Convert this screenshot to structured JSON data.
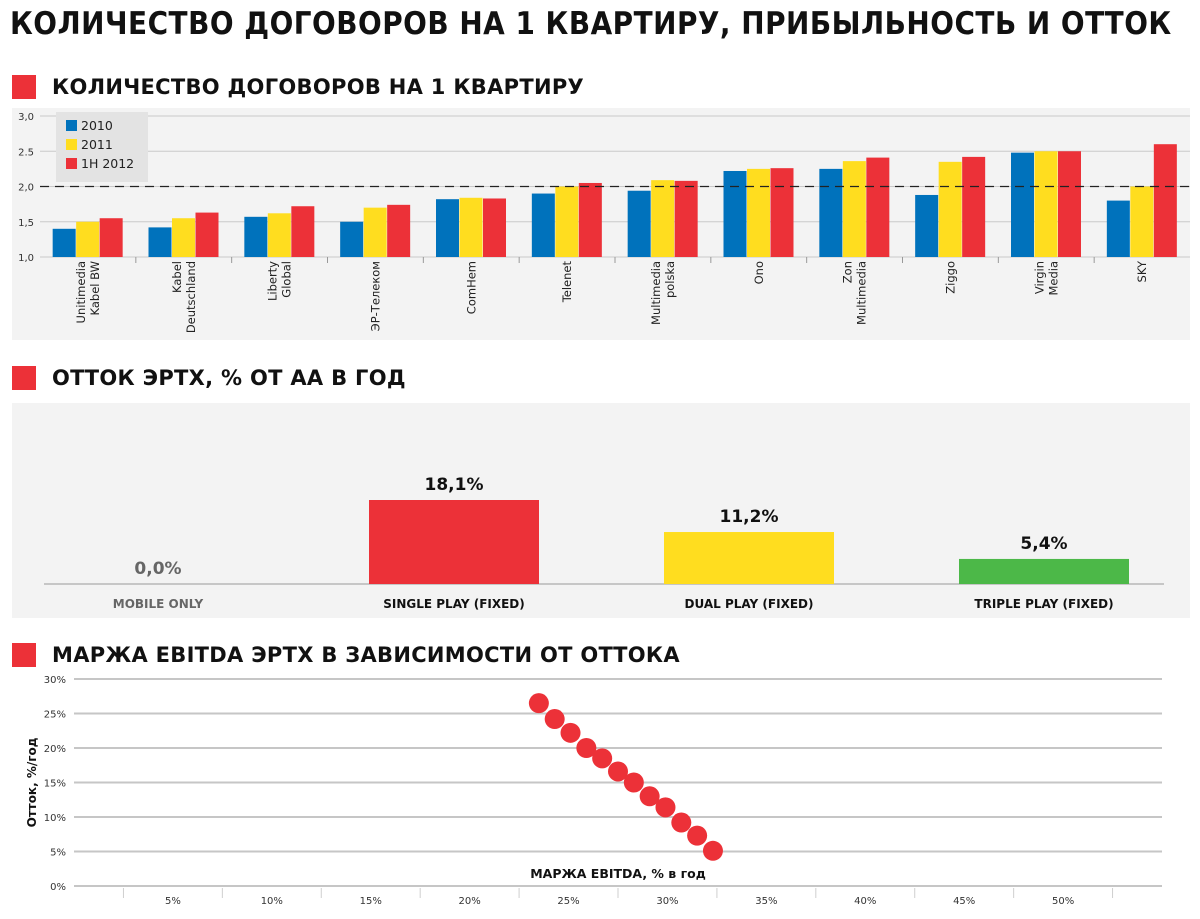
{
  "page": {
    "title": "КОЛИЧЕСТВО ДОГОВОРОВ НА 1 КВАРТИРУ, ПРИБЫЛЬНОСТЬ И ОТТОК"
  },
  "sections": {
    "contracts": "КОЛИЧЕСТВО ДОГОВОРОВ НА 1 КВАРТИРУ",
    "churn": "ОТТОК ЭРТХ, % ОТ АА В ГОД",
    "margin": "МАРЖА EBITDA ЭРТХ В ЗАВИСИМОСТИ ОТ ОТТОКА"
  },
  "colors": {
    "accent": "#ec3138",
    "series_2010": "#0072bc",
    "series_2011": "#ffdd1f",
    "series_1h2012": "#ec3138",
    "triple_play": "#4cb848",
    "panel_bg": "#f3f3f3",
    "grid": "#c8c8c8"
  },
  "chart_data": [
    {
      "type": "bar",
      "title": "КОЛИЧЕСТВО ДОГОВОРОВ НА 1 КВАРТИРУ",
      "categories": [
        "Unitimedia\nKabel BW",
        "Kabel\nDeutschland",
        "Liberty\nGlobal",
        "ЭР-Телеком",
        "ComHem",
        "Telenet",
        "Multimedia\npolska",
        "Ono",
        "Zon\nMultimedia",
        "Ziggo",
        "Virgin\nMedia",
        "SKY"
      ],
      "series": [
        {
          "name": "2010",
          "color": "#0072bc",
          "values": [
            1.4,
            1.42,
            1.57,
            1.5,
            1.82,
            1.9,
            1.94,
            2.22,
            2.25,
            1.88,
            2.48,
            1.8
          ]
        },
        {
          "name": "2011",
          "color": "#ffdd1f",
          "values": [
            1.5,
            1.55,
            1.62,
            1.7,
            1.84,
            2.0,
            2.09,
            2.25,
            2.36,
            2.35,
            2.5,
            2.0
          ]
        },
        {
          "name": "1H 2012",
          "color": "#ec3138",
          "values": [
            1.55,
            1.63,
            1.72,
            1.74,
            1.83,
            2.05,
            2.08,
            2.26,
            2.41,
            2.42,
            2.5,
            2.6
          ]
        }
      ],
      "ylim": [
        1.0,
        3.0
      ],
      "yticks": [
        "1,0",
        "1,5",
        "2,0",
        "2.5",
        "3,0"
      ],
      "ytick_values": [
        1.0,
        1.5,
        2.0,
        2.5,
        3.0
      ],
      "reference_line": 2.0,
      "legend": "top-left",
      "grid": true
    },
    {
      "type": "bar",
      "title": "ОТТОК ЭРТХ, % ОТ АА В ГОД",
      "categories": [
        "MOBILE ONLY",
        "SINGLE PLAY (FIXED)",
        "DUAL PLAY (FIXED)",
        "TRIPLE PLAY (FIXED)"
      ],
      "values": [
        0.0,
        18.1,
        11.2,
        5.4
      ],
      "labels": [
        "0,0%",
        "18,1%",
        "11,2%",
        "5,4%"
      ],
      "colors": [
        "#ffffff",
        "#ec3138",
        "#ffdd1f",
        "#4cb848"
      ],
      "ylim": [
        0,
        22
      ]
    },
    {
      "type": "scatter",
      "title": "МАРЖА EBITDA ЭРТХ В ЗАВИСИМОСТИ ОТ ОТТОКА",
      "xlabel": "МАРЖА EBITDA, % в год",
      "ylabel": "Отток, %/год",
      "xlim": [
        0,
        55
      ],
      "ylim": [
        0,
        30
      ],
      "xticks": [
        "5%",
        "10%",
        "15%",
        "20%",
        "25%",
        "30%",
        "35%",
        "40%",
        "45%",
        "50%"
      ],
      "xtick_values": [
        5,
        10,
        15,
        20,
        25,
        30,
        35,
        40,
        45,
        50
      ],
      "yticks": [
        "0%",
        "5%",
        "10%",
        "15%",
        "20%",
        "25%",
        "30%"
      ],
      "ytick_values": [
        0,
        5,
        10,
        15,
        20,
        25,
        30
      ],
      "x": [
        23.5,
        24.3,
        25.1,
        25.9,
        26.7,
        27.5,
        28.3,
        29.1,
        29.9,
        30.7,
        31.5,
        32.3
      ],
      "y": [
        26.5,
        24.2,
        22.2,
        20.0,
        18.5,
        16.6,
        15.0,
        13.0,
        11.4,
        9.2,
        7.3,
        5.1
      ],
      "grid": true
    }
  ]
}
